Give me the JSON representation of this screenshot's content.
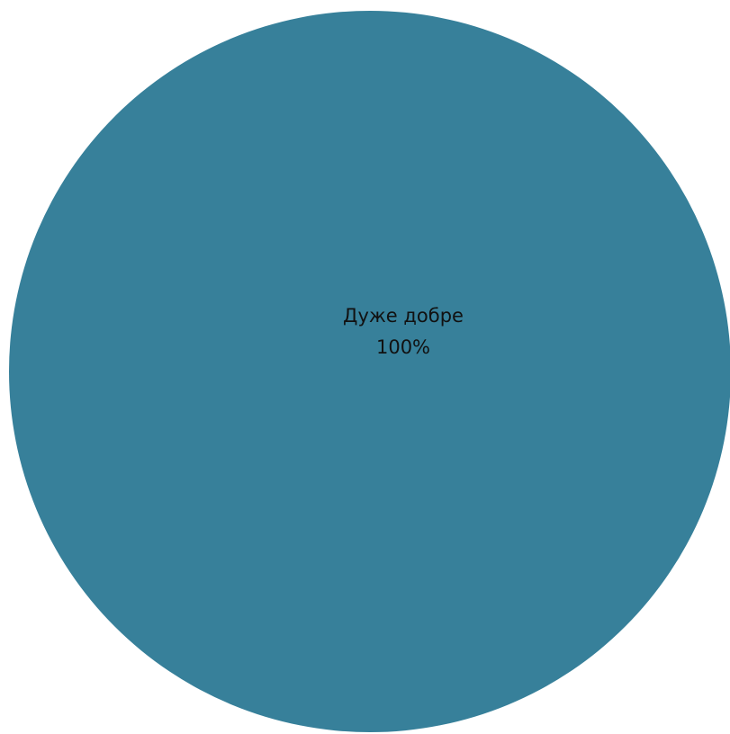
{
  "chart_data": {
    "type": "pie",
    "slices": [
      {
        "label": "Дуже добре",
        "value": 100,
        "value_label": "100%",
        "color": "#37809A"
      }
    ],
    "legend": "none"
  }
}
